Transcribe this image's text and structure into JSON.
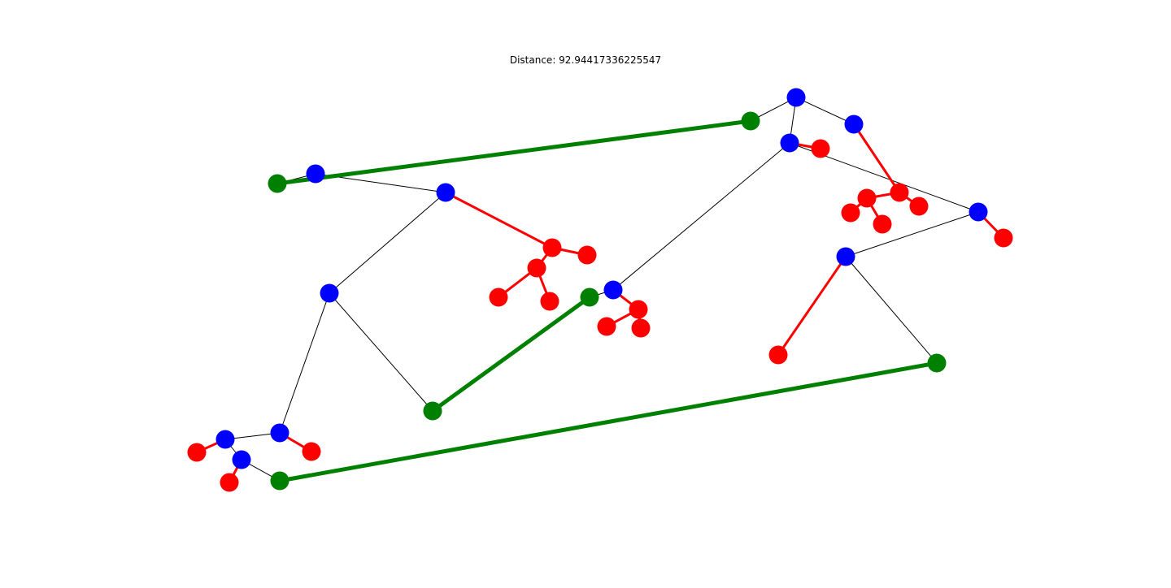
{
  "title": "Distance: 92.94417336225547",
  "colors": {
    "blue": "#0000ff",
    "red": "#ff0000",
    "green": "#008000",
    "black": "#000000"
  },
  "nodes": [
    {
      "id": "g1",
      "color": "green"
    },
    {
      "id": "g2",
      "color": "green"
    },
    {
      "id": "g3",
      "color": "green"
    },
    {
      "id": "g4",
      "color": "green"
    },
    {
      "id": "g5",
      "color": "green"
    },
    {
      "id": "g6",
      "color": "green"
    },
    {
      "id": "b1",
      "color": "blue"
    },
    {
      "id": "b2",
      "color": "blue"
    },
    {
      "id": "b3",
      "color": "blue"
    },
    {
      "id": "b4",
      "color": "blue"
    },
    {
      "id": "b5",
      "color": "blue"
    },
    {
      "id": "b6",
      "color": "blue"
    },
    {
      "id": "b7",
      "color": "blue"
    },
    {
      "id": "b8",
      "color": "blue"
    },
    {
      "id": "b9",
      "color": "blue"
    },
    {
      "id": "b10",
      "color": "blue"
    },
    {
      "id": "b11",
      "color": "blue"
    },
    {
      "id": "r1",
      "color": "red"
    },
    {
      "id": "r2",
      "color": "red"
    },
    {
      "id": "r3",
      "color": "red"
    },
    {
      "id": "r4",
      "color": "red"
    },
    {
      "id": "r5",
      "color": "red"
    },
    {
      "id": "r6",
      "color": "red"
    },
    {
      "id": "r7",
      "color": "red"
    },
    {
      "id": "r8",
      "color": "red"
    },
    {
      "id": "r9",
      "color": "red"
    },
    {
      "id": "r10",
      "color": "red"
    },
    {
      "id": "r11",
      "color": "red"
    },
    {
      "id": "r12",
      "color": "red"
    },
    {
      "id": "r13",
      "color": "red"
    },
    {
      "id": "r14",
      "color": "red"
    },
    {
      "id": "r15",
      "color": "red"
    },
    {
      "id": "r16",
      "color": "red"
    },
    {
      "id": "r17",
      "color": "red"
    }
  ],
  "edges": [
    {
      "from": "g1",
      "to": "g2",
      "type": "green"
    },
    {
      "from": "g3",
      "to": "g4",
      "type": "green"
    },
    {
      "from": "g5",
      "to": "g6",
      "type": "green"
    },
    {
      "from": "g1",
      "to": "b1",
      "type": "black"
    },
    {
      "from": "b1",
      "to": "b2",
      "type": "black"
    },
    {
      "from": "b2",
      "to": "b3",
      "type": "black"
    },
    {
      "from": "b3",
      "to": "g3",
      "type": "black"
    },
    {
      "from": "b3",
      "to": "b4",
      "type": "black"
    },
    {
      "from": "b4",
      "to": "b5",
      "type": "black"
    },
    {
      "from": "b5",
      "to": "b6",
      "type": "black"
    },
    {
      "from": "b6",
      "to": "g5",
      "type": "black"
    },
    {
      "from": "g4",
      "to": "b7",
      "type": "black"
    },
    {
      "from": "b7",
      "to": "b8",
      "type": "black"
    },
    {
      "from": "b8",
      "to": "b9",
      "type": "black"
    },
    {
      "from": "b9",
      "to": "b10",
      "type": "black"
    },
    {
      "from": "b9",
      "to": "g2",
      "type": "black"
    },
    {
      "from": "b8",
      "to": "b11",
      "type": "black"
    },
    {
      "from": "b11",
      "to": "b12",
      "type": "black"
    },
    {
      "from": "b12",
      "to": "g6",
      "type": "black"
    },
    {
      "from": "b2",
      "to": "r1",
      "type": "red"
    },
    {
      "from": "r1",
      "to": "r2",
      "type": "red"
    },
    {
      "from": "r1",
      "to": "r3",
      "type": "red"
    },
    {
      "from": "r3",
      "to": "r4",
      "type": "red"
    },
    {
      "from": "r3",
      "to": "r5",
      "type": "red"
    },
    {
      "from": "b7",
      "to": "r6",
      "type": "red"
    },
    {
      "from": "r6",
      "to": "r7",
      "type": "red"
    },
    {
      "from": "b8",
      "to": "r9",
      "type": "red"
    },
    {
      "from": "b10",
      "to": "r10",
      "type": "red"
    },
    {
      "from": "r10",
      "to": "r11",
      "type": "red"
    },
    {
      "from": "r10",
      "to": "r12",
      "type": "red"
    },
    {
      "from": "r11",
      "to": "r13",
      "type": "red"
    },
    {
      "from": "r11",
      "to": "r14",
      "type": "red"
    },
    {
      "from": "b11",
      "to": "r15",
      "type": "red"
    },
    {
      "from": "b12",
      "to": "r16",
      "type": "red"
    },
    {
      "from": "b4",
      "to": "r17",
      "type": "red"
    },
    {
      "from": "b5",
      "to": "r18",
      "type": "red"
    },
    {
      "from": "b6",
      "to": "r19",
      "type": "red"
    }
  ]
}
